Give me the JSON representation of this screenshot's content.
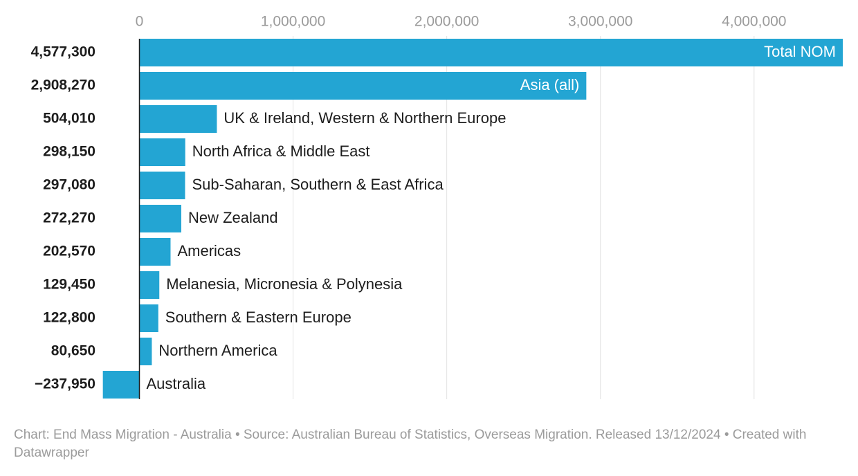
{
  "chart_data": {
    "type": "bar",
    "orientation": "horizontal",
    "categories": [
      "Total NOM",
      "Asia (all)",
      "UK & Ireland, Western & Northern Europe",
      "North Africa & Middle East",
      "Sub-Saharan, Southern & East Africa",
      "New Zealand",
      "Americas",
      "Melanesia, Micronesia & Polynesia",
      "Southern & Eastern Europe",
      "Northern America",
      "Australia"
    ],
    "values": [
      4577300,
      2908270,
      504010,
      298150,
      297080,
      272270,
      202570,
      129450,
      122800,
      80650,
      -237950
    ],
    "value_labels": [
      "4,577,300",
      "2,908,270",
      "504,010",
      "298,150",
      "297,080",
      "272,270",
      "202,570",
      "129,450",
      "122,800",
      "80,650",
      "−237,950"
    ],
    "label_inside": [
      true,
      true,
      false,
      false,
      false,
      false,
      false,
      false,
      false,
      false,
      false
    ],
    "xticks": [
      0,
      1000000,
      2000000,
      3000000,
      4000000
    ],
    "xtick_labels": [
      "0",
      "1,000,000",
      "2,000,000",
      "3,000,000",
      "4,000,000"
    ],
    "xlim": [
      -237950,
      4577300
    ],
    "grid": true,
    "colors": {
      "bar": "#23a5d3",
      "grid": "#e2e2e2",
      "axis": "#1d1d1d",
      "tick_text": "#9b9b9b",
      "label_text": "#1d1d1d",
      "inside_label_text": "#ffffff"
    }
  },
  "footer": {
    "text": "Chart: End Mass Migration - Australia • Source: Australian Bureau of Statistics, Overseas Migration. Released 13/12/2024 • Created with Datawrapper"
  }
}
